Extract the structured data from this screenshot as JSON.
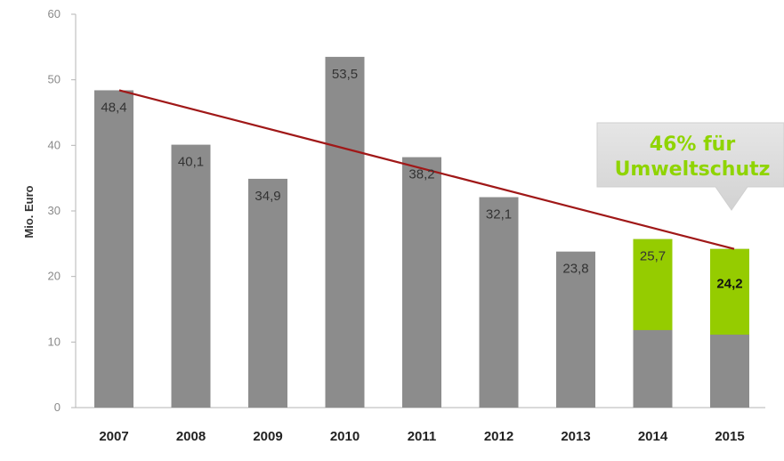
{
  "chart_data": {
    "type": "bar",
    "categories": [
      "2007",
      "2008",
      "2009",
      "2010",
      "2011",
      "2012",
      "2013",
      "2014",
      "2015"
    ],
    "values": [
      48.4,
      40.1,
      34.9,
      53.5,
      38.2,
      32.1,
      23.8,
      25.7,
      24.2
    ],
    "value_labels": [
      "48,4",
      "40,1",
      "34,9",
      "53,5",
      "38,2",
      "32,1",
      "23,8",
      "25,7",
      "24,2"
    ],
    "highlight_values": [
      null,
      null,
      null,
      null,
      null,
      null,
      null,
      25.7,
      24.2
    ],
    "ylabel": "Mio. Euro",
    "ylim": [
      0,
      60
    ],
    "yticks": [
      0,
      10,
      20,
      30,
      40,
      50,
      60
    ],
    "trendline": {
      "from": [
        2007,
        48.4
      ],
      "to": [
        2015,
        24.2
      ]
    },
    "annotation": {
      "lines": [
        "46% für",
        "Umweltschutz"
      ],
      "points_to": "2015"
    },
    "colors": {
      "bar": "#8c8c8c",
      "highlight": "#95cc00",
      "trend": "#a01818",
      "axis": "#b5b5b5",
      "callout_bg": "#dedede"
    }
  }
}
